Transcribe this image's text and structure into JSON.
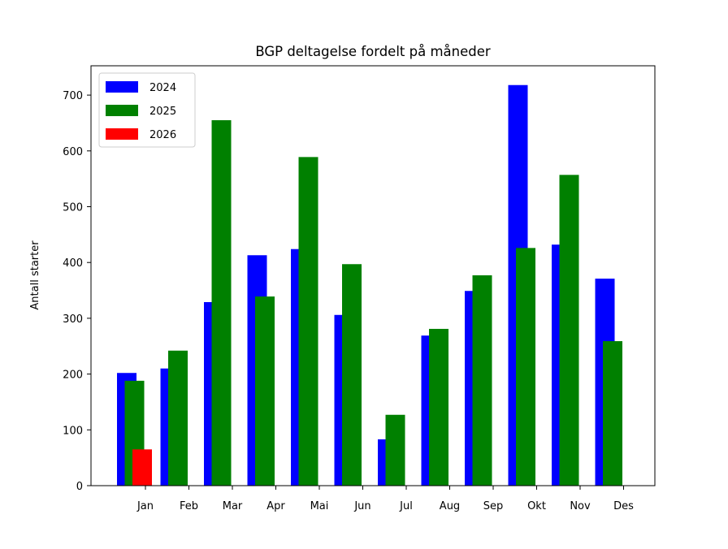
{
  "chart_data": {
    "type": "bar",
    "title": "BGP deltagelse fordelt på måneder",
    "xlabel": "",
    "ylabel": "Antall starter",
    "ylim": [
      0,
      750
    ],
    "yticks": [
      0,
      100,
      200,
      300,
      400,
      500,
      600,
      700
    ],
    "categories": [
      "Jan",
      "Feb",
      "Mar",
      "Apr",
      "Mai",
      "Jun",
      "Jul",
      "Aug",
      "Sep",
      "Okt",
      "Nov",
      "Des"
    ],
    "legend_position": "top-left",
    "grid": false,
    "series": [
      {
        "name": "2024",
        "color": "#0000ff",
        "values": [
          202,
          210,
          329,
          413,
          424,
          306,
          83,
          269,
          349,
          718,
          432,
          371
        ]
      },
      {
        "name": "2025",
        "color": "#008000",
        "values": [
          188,
          242,
          655,
          339,
          589,
          397,
          127,
          281,
          377,
          426,
          557,
          259
        ]
      },
      {
        "name": "2026",
        "color": "#ff0000",
        "values": [
          65,
          null,
          null,
          null,
          null,
          null,
          null,
          null,
          null,
          null,
          null,
          null
        ]
      }
    ]
  }
}
